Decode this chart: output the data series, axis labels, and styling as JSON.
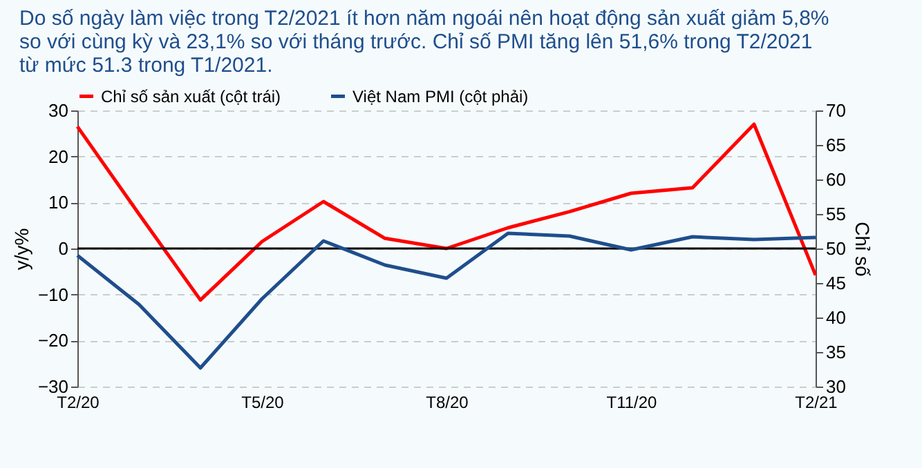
{
  "chart_data": {
    "type": "line",
    "title": "Do số ngày làm việc trong T2/2021 ít hơn năm ngoái nên hoạt động sản xuất giảm 5,8% so với cùng kỳ và 23,1% so với tháng trước. Chỉ số PMI tăng lên 51,6% trong T2/2021 từ mức 51.3 trong T1/2021.",
    "categories": [
      "T2/20",
      null,
      null,
      "T5/20",
      null,
      null,
      "T8/20",
      null,
      null,
      "T11/20",
      null,
      null,
      "T2/21"
    ],
    "series": [
      {
        "name": "Chỉ số sản xuất (cột trái)",
        "color": "#ff0000",
        "values": [
          26.5,
          7.5,
          -11.2,
          1.5,
          10.2,
          2.2,
          0,
          4.5,
          8,
          12,
          13.2,
          27,
          -5.8
        ]
      },
      {
        "name": "Việt Nam PMI (cột phải)",
        "color": "#1f4e8c",
        "axis": "y2",
        "values": [
          49.0,
          41.9,
          32.7,
          42.7,
          51.1,
          47.6,
          45.7,
          52.2,
          51.8,
          49.8,
          51.7,
          51.3,
          51.6
        ]
      }
    ],
    "ylabel": "y/y%",
    "y2label": "Chỉ số",
    "ylim": [
      -30,
      30
    ],
    "yticks": [
      -30,
      -20,
      -10,
      0,
      10,
      20,
      30
    ],
    "y2lim": [
      30,
      70
    ],
    "y2ticks": [
      30,
      35,
      40,
      45,
      50,
      55,
      60,
      65,
      70
    ],
    "ref_lines": [
      {
        "axis": "y",
        "value": 0,
        "color": "#000000"
      }
    ],
    "grid": "y",
    "legend": "top",
    "line_style": "solid"
  }
}
